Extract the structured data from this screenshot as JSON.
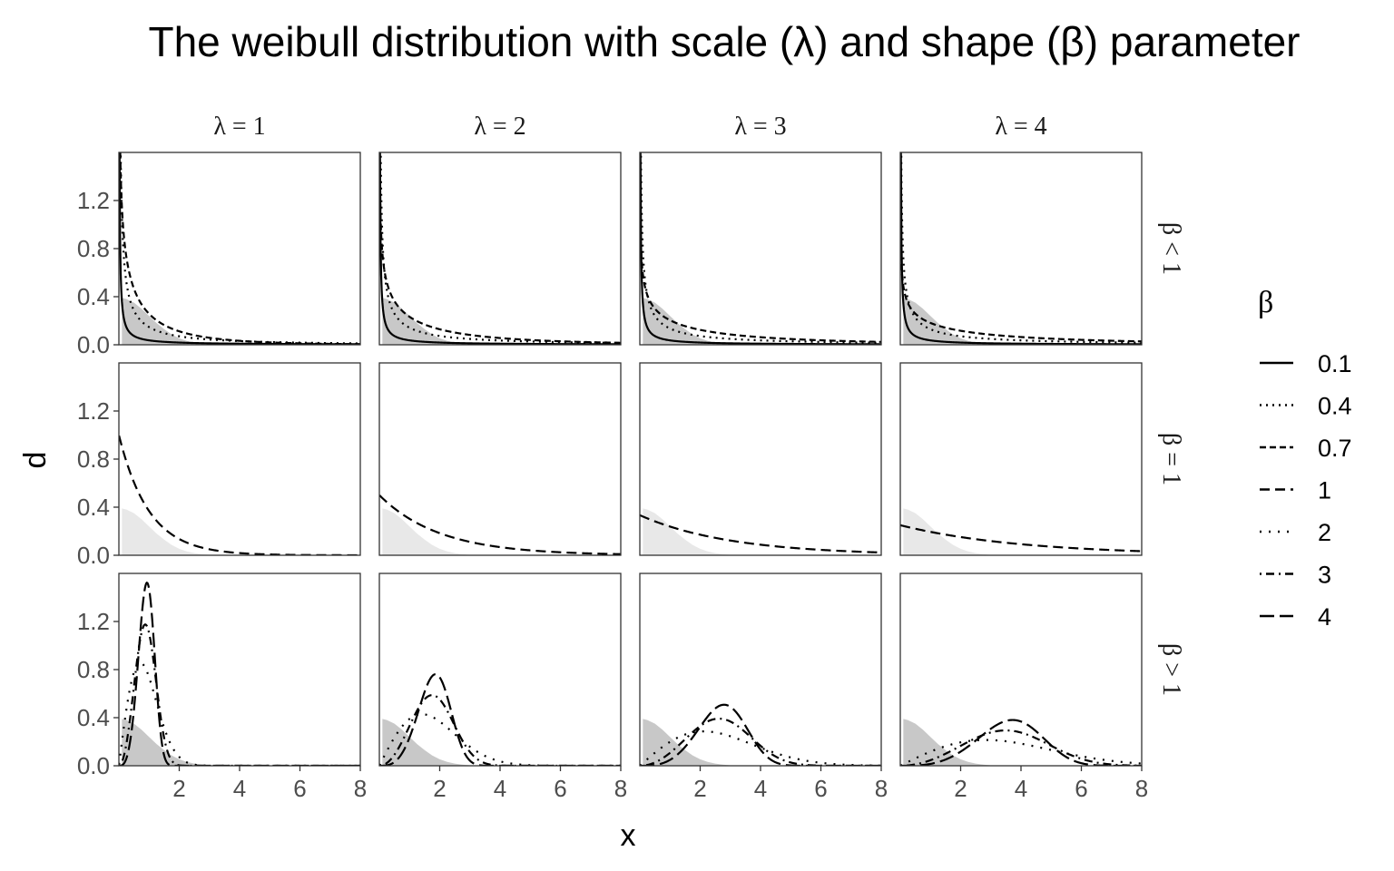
{
  "chart_data": {
    "type": "line",
    "title": "The weibull distribution with scale (λ) and shape (β) parameter",
    "xlabel": "x",
    "ylabel": "d",
    "xlim": [
      0,
      8
    ],
    "ylim": [
      0,
      1.6
    ],
    "x_ticks": [
      "2",
      "4",
      "6",
      "8"
    ],
    "y_ticks": [
      "0.0",
      "0.4",
      "0.8",
      "1.2"
    ],
    "x_tick_values": [
      2,
      4,
      6,
      8
    ],
    "y_tick_values": [
      0,
      0.4,
      0.8,
      1.2
    ],
    "column_facets": [
      {
        "label": "λ = 1",
        "lambda": 1
      },
      {
        "label": "λ = 2",
        "lambda": 2
      },
      {
        "label": "λ = 3",
        "lambda": 3
      },
      {
        "label": "λ = 4",
        "lambda": 4
      }
    ],
    "row_facets": [
      {
        "label": "β < 1",
        "betas": [
          0.1,
          0.4,
          0.7
        ],
        "shade": "#c8c8c8"
      },
      {
        "label": "β = 1",
        "betas": [
          1
        ],
        "shade": "#e8e8e8"
      },
      {
        "label": "β > 1",
        "betas": [
          2,
          3,
          4
        ],
        "shade": "#c8c8c8"
      }
    ],
    "legend": {
      "title": "β",
      "placement": "right",
      "entries": [
        {
          "label": "0.1",
          "beta": 0.1,
          "dash": "solid"
        },
        {
          "label": "0.4",
          "beta": 0.4,
          "dash": "2,5"
        },
        {
          "label": "0.7",
          "beta": 0.7,
          "dash": "7,4"
        },
        {
          "label": "1",
          "beta": 1,
          "dash": "11,6"
        },
        {
          "label": "2",
          "beta": 2,
          "dash": "2,8"
        },
        {
          "label": "3",
          "beta": 3,
          "dash": "2,5,9,5"
        },
        {
          "label": "4",
          "beta": 4,
          "dash": "16,6"
        }
      ]
    },
    "background_area": {
      "description_source": "grey reference density shown behind every panel",
      "x": [
        0.1,
        0.25,
        0.5,
        0.75,
        1.0,
        1.25,
        1.5,
        1.75,
        2.0,
        2.25,
        2.5,
        2.75,
        3.0
      ],
      "y": [
        0.39,
        0.38,
        0.35,
        0.3,
        0.24,
        0.18,
        0.13,
        0.086,
        0.054,
        0.032,
        0.018,
        0.009,
        0.004
      ]
    },
    "series_function": "weibull density d(x) = (β/λ)(x/λ)^(β-1) exp(-(x/λ)^β), clipped to ylim",
    "grid": false
  }
}
